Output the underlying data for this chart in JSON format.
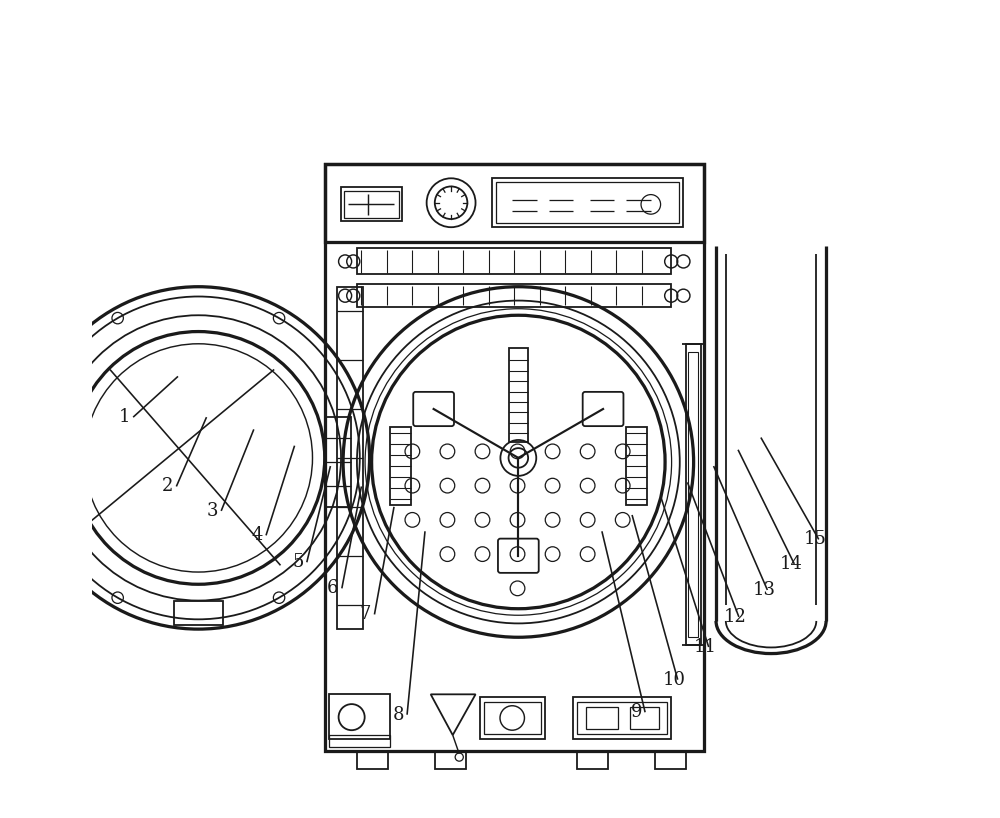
{
  "bg_color": "#ffffff",
  "line_color": "#1a1a1a",
  "lw": 1.3,
  "fig_width": 10.0,
  "fig_height": 8.18,
  "label_fontsize": 13
}
